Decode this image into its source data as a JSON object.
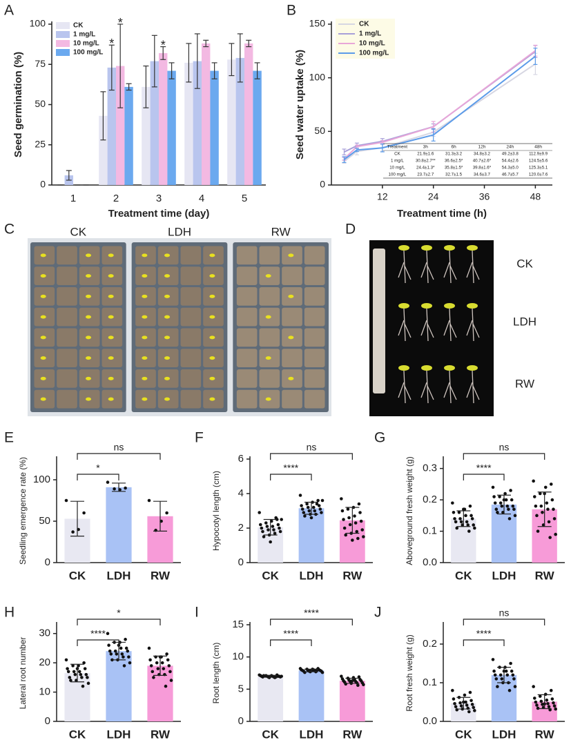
{
  "chart_data": [
    {
      "type": "bar",
      "panel": "A",
      "y_label": "Seed germination (%)",
      "x_label": "Treatment time (day)",
      "categories": [
        "1",
        "2",
        "3",
        "4",
        "5"
      ],
      "series": [
        {
          "name": "CK",
          "color": "#e6e6f3",
          "values": [
            0,
            43,
            61,
            76,
            78
          ],
          "errors": [
            0,
            15,
            13,
            12,
            10
          ],
          "significance": [
            null,
            null,
            null,
            null,
            null
          ]
        },
        {
          "name": "1 mg/L",
          "color": "#b9c5ee",
          "values": [
            6,
            73,
            77,
            77,
            79
          ],
          "errors": [
            3,
            14,
            16,
            17,
            15
          ],
          "significance": [
            null,
            "*",
            null,
            null,
            null
          ]
        },
        {
          "name": "10 mg/L",
          "color": "#f3b9e2",
          "values": [
            0,
            74,
            82,
            88,
            88
          ],
          "errors": [
            0,
            26,
            4,
            2,
            2
          ],
          "significance": [
            null,
            "*",
            "*",
            null,
            null
          ]
        },
        {
          "name": "100 mg/L",
          "color": "#6ba9ef",
          "values": [
            0,
            61,
            71,
            71,
            71
          ],
          "errors": [
            0,
            2,
            5,
            5,
            5
          ],
          "significance": [
            null,
            null,
            null,
            null,
            null
          ]
        }
      ],
      "ylim": [
        0,
        100
      ],
      "yticks": [
        0,
        25,
        50,
        75,
        100
      ]
    },
    {
      "type": "line",
      "panel": "B",
      "y_label": "Seed water uptake (%)",
      "x_label": "Treatment time (h)",
      "x": [
        3,
        6,
        12,
        24,
        48
      ],
      "series": [
        {
          "name": "CK",
          "color": "#d6d6e2",
          "values": [
            21.9,
            31.3,
            34.8,
            49.2,
            112.9
          ],
          "errors": [
            1.6,
            3.2,
            3.2,
            3.8,
            9.9
          ]
        },
        {
          "name": "1 mg/L",
          "color": "#a79fd9",
          "values": [
            30.8,
            36.6,
            40.7,
            54.4,
            124.5
          ],
          "errors": [
            2.7,
            2.5,
            2.6,
            2.6,
            5.6
          ]
        },
        {
          "name": "10 mg/L",
          "color": "#e8a6d8",
          "values": [
            24.4,
            35.8,
            39.8,
            54.3,
            125.3
          ],
          "errors": [
            1.3,
            1.5,
            1.6,
            5.0,
            5.1
          ]
        },
        {
          "name": "100 mg/L",
          "color": "#5b9be9",
          "values": [
            23.7,
            32.7,
            34.6,
            46.7,
            120.0
          ],
          "errors": [
            2.7,
            1.5,
            3.7,
            5.7,
            7.6
          ]
        }
      ],
      "xlim": [
        0,
        52
      ],
      "xticks": [
        12,
        24,
        36,
        48
      ],
      "ylim": [
        0,
        150
      ],
      "yticks": [
        0,
        50,
        100,
        150
      ],
      "table": {
        "header": [
          "Treatment",
          "3h",
          "6h",
          "12h",
          "24h",
          "48h"
        ],
        "rows": [
          [
            "CK",
            "21.9±1.6",
            "31.3±3.2",
            "34.8±3.2",
            "49.2±3.8",
            "112.9±9.9"
          ],
          [
            "1 mg/L",
            "30.8±2.7**",
            "36.6±2.5*",
            "40.7±2.6*",
            "54.4±2.6",
            "124.5±5.6"
          ],
          [
            "10 mg/L",
            "24.4±1.3*",
            "35.8±1.5*",
            "39.8±1.6*",
            "54.3±5.0",
            "125.3±5.1"
          ],
          [
            "100 mg/L",
            "23.7±2.7",
            "32.7±1.5",
            "34.6±3.7",
            "46.7±5.7",
            "120.0±7.6"
          ]
        ]
      }
    },
    {
      "type": "photo",
      "panel": "C",
      "labels": [
        "CK",
        "LDH",
        "RW"
      ],
      "colors": [
        "#a31c1c",
        "#a31c1c",
        "#222222"
      ]
    },
    {
      "type": "photo",
      "panel": "D",
      "labels": [
        "CK",
        "LDH",
        "RW"
      ],
      "colors": [
        "#a31c1c",
        "#a31c1c",
        "#a31c1c"
      ]
    },
    {
      "type": "bar",
      "panel": "E",
      "y_label": "Seedling emergence rate (%)",
      "categories": [
        "CK",
        "LDH",
        "RW"
      ],
      "colors": [
        "#e8e8f2",
        "#a9c2f5",
        "#f79bd8"
      ],
      "values": [
        53,
        91,
        56
      ],
      "errors": [
        21,
        5,
        18
      ],
      "points": [
        [
          75,
          60,
          40,
          37
        ],
        [
          97,
          90,
          88,
          89
        ],
        [
          75,
          60,
          50,
          39
        ]
      ],
      "ylim": [
        0,
        125
      ],
      "yticks": [
        0,
        50,
        100
      ],
      "comparisons": [
        {
          "from": "CK",
          "to": "LDH",
          "label": "*"
        },
        {
          "from": "CK",
          "to": "RW",
          "label": "ns"
        }
      ]
    },
    {
      "type": "bar",
      "panel": "F",
      "y_label": "Hypocotyl length (cm)",
      "categories": [
        "CK",
        "LDH",
        "RW"
      ],
      "colors": [
        "#e8e8f2",
        "#a9c2f5",
        "#f79bd8"
      ],
      "values": [
        2.05,
        3.15,
        2.45
      ],
      "errors": [
        0.45,
        0.35,
        0.75
      ],
      "points": [
        [
          2.9,
          2.5,
          2.4,
          2.3,
          2.2,
          2.2,
          2.1,
          2.1,
          2.0,
          2.0,
          1.9,
          1.9,
          1.8,
          1.8,
          1.7,
          1.6,
          1.5,
          2.5,
          2.6,
          1.2
        ],
        [
          3.9,
          3.6,
          3.5,
          3.4,
          3.3,
          3.3,
          3.2,
          3.2,
          3.1,
          3.1,
          3.0,
          3.0,
          2.9,
          2.9,
          2.8,
          2.8,
          2.7,
          3.6,
          3.4,
          2.6
        ],
        [
          3.7,
          3.4,
          3.2,
          3.1,
          3.0,
          2.9,
          2.7,
          2.6,
          2.5,
          2.4,
          2.3,
          2.2,
          2.0,
          1.9,
          1.8,
          1.7,
          1.6,
          1.5,
          1.4,
          1.3
        ]
      ],
      "ylim": [
        0,
        6
      ],
      "yticks": [
        0,
        2,
        4,
        6
      ],
      "comparisons": [
        {
          "from": "CK",
          "to": "LDH",
          "label": "****"
        },
        {
          "from": "CK",
          "to": "RW",
          "label": "ns"
        }
      ]
    },
    {
      "type": "bar",
      "panel": "G",
      "y_label": "Aboveground fresh weight (g)",
      "categories": [
        "CK",
        "LDH",
        "RW"
      ],
      "colors": [
        "#e8e8f2",
        "#a9c2f5",
        "#f79bd8"
      ],
      "values": [
        0.14,
        0.185,
        0.17
      ],
      "errors": [
        0.025,
        0.03,
        0.055
      ],
      "points": [
        [
          0.19,
          0.18,
          0.17,
          0.16,
          0.16,
          0.15,
          0.15,
          0.14,
          0.14,
          0.14,
          0.13,
          0.13,
          0.13,
          0.12,
          0.12,
          0.12,
          0.11,
          0.11,
          0.1,
          0.17
        ],
        [
          0.24,
          0.23,
          0.22,
          0.21,
          0.21,
          0.2,
          0.2,
          0.19,
          0.19,
          0.18,
          0.18,
          0.18,
          0.17,
          0.17,
          0.17,
          0.16,
          0.16,
          0.15,
          0.14,
          0.2
        ],
        [
          0.26,
          0.25,
          0.24,
          0.22,
          0.21,
          0.2,
          0.19,
          0.18,
          0.18,
          0.17,
          0.17,
          0.16,
          0.15,
          0.14,
          0.13,
          0.12,
          0.1,
          0.09,
          0.08,
          0.22
        ]
      ],
      "ylim": [
        0,
        0.33
      ],
      "yticks": [
        {
          "value": 0,
          "label": "0.0"
        },
        0.1,
        0.2,
        0.3
      ],
      "comparisons": [
        {
          "from": "CK",
          "to": "LDH",
          "label": "****"
        },
        {
          "from": "CK",
          "to": "RW",
          "label": "ns"
        }
      ]
    },
    {
      "type": "bar",
      "panel": "H",
      "y_label": "Lateral root number",
      "categories": [
        "CK",
        "LDH",
        "RW"
      ],
      "colors": [
        "#e8e8f2",
        "#a9c2f5",
        "#f79bd8"
      ],
      "values": [
        16.5,
        24,
        19
      ],
      "errors": [
        3,
        3,
        3.3
      ],
      "points": [
        [
          21,
          20,
          19,
          19,
          18,
          18,
          17,
          17,
          17,
          16,
          16,
          16,
          15,
          15,
          15,
          14,
          14,
          13,
          12,
          18
        ],
        [
          30,
          28,
          27,
          27,
          26,
          25,
          25,
          24,
          24,
          24,
          23,
          23,
          23,
          22,
          22,
          21,
          21,
          20,
          19,
          26
        ],
        [
          25,
          23,
          22,
          22,
          21,
          21,
          20,
          20,
          19,
          19,
          18,
          18,
          17,
          17,
          16,
          16,
          15,
          14,
          12,
          22
        ]
      ],
      "ylim": [
        0,
        33
      ],
      "yticks": [
        0,
        10,
        20,
        30
      ],
      "comparisons": [
        {
          "from": "CK",
          "to": "LDH",
          "label": "****"
        },
        {
          "from": "CK",
          "to": "RW",
          "label": "*"
        }
      ]
    },
    {
      "type": "bar",
      "panel": "I",
      "y_label": "Root length (cm)",
      "categories": [
        "CK",
        "LDH",
        "RW"
      ],
      "colors": [
        "#e8e8f2",
        "#a9c2f5",
        "#f79bd8"
      ],
      "values": [
        7.0,
        7.9,
        6.3
      ],
      "errors": [
        0.15,
        0.2,
        0.4
      ],
      "points": [
        [
          7.2,
          7.2,
          7.1,
          7.1,
          7.1,
          7.0,
          7.0,
          7.0,
          7.0,
          7.0,
          6.9,
          6.9,
          6.9,
          6.9,
          6.8,
          6.8,
          7.1,
          7.0,
          6.9,
          7.0
        ],
        [
          8.2,
          8.2,
          8.1,
          8.1,
          8.0,
          8.0,
          8.0,
          7.9,
          7.9,
          7.9,
          7.9,
          7.8,
          7.8,
          7.8,
          7.7,
          7.7,
          7.6,
          7.6,
          8.0,
          7.9
        ],
        [
          7.0,
          6.9,
          6.8,
          6.7,
          6.6,
          6.5,
          6.5,
          6.4,
          6.3,
          6.3,
          6.2,
          6.2,
          6.1,
          6.0,
          6.0,
          5.9,
          5.8,
          5.7,
          5.6,
          6.3
        ]
      ],
      "ylim": [
        0,
        15
      ],
      "yticks": [
        0,
        5,
        10,
        15
      ],
      "comparisons": [
        {
          "from": "CK",
          "to": "LDH",
          "label": "****"
        },
        {
          "from": "CK",
          "to": "RW",
          "label": "****"
        }
      ]
    },
    {
      "type": "bar",
      "panel": "J",
      "y_label": "Root fresh weight (g)",
      "categories": [
        "CK",
        "LDH",
        "RW"
      ],
      "colors": [
        "#e8e8f2",
        "#a9c2f5",
        "#f79bd8"
      ],
      "values": [
        0.047,
        0.12,
        0.051
      ],
      "errors": [
        0.015,
        0.02,
        0.018
      ],
      "points": [
        [
          0.08,
          0.075,
          0.068,
          0.062,
          0.058,
          0.054,
          0.05,
          0.048,
          0.046,
          0.044,
          0.042,
          0.04,
          0.038,
          0.036,
          0.034,
          0.032,
          0.03,
          0.028,
          0.025,
          0.05
        ],
        [
          0.16,
          0.15,
          0.14,
          0.14,
          0.13,
          0.13,
          0.13,
          0.12,
          0.12,
          0.12,
          0.12,
          0.11,
          0.11,
          0.11,
          0.1,
          0.1,
          0.09,
          0.09,
          0.08,
          0.13
        ],
        [
          0.09,
          0.08,
          0.07,
          0.065,
          0.06,
          0.058,
          0.055,
          0.052,
          0.05,
          0.048,
          0.046,
          0.044,
          0.042,
          0.04,
          0.038,
          0.036,
          0.034,
          0.032,
          0.03,
          0.045
        ]
      ],
      "ylim": [
        0,
        0.25
      ],
      "yticks": [
        {
          "value": 0,
          "label": "0.0"
        },
        0.1,
        0.2
      ],
      "comparisons": [
        {
          "from": "CK",
          "to": "LDH",
          "label": "****"
        },
        {
          "from": "CK",
          "to": "RW",
          "label": "ns"
        }
      ]
    }
  ]
}
